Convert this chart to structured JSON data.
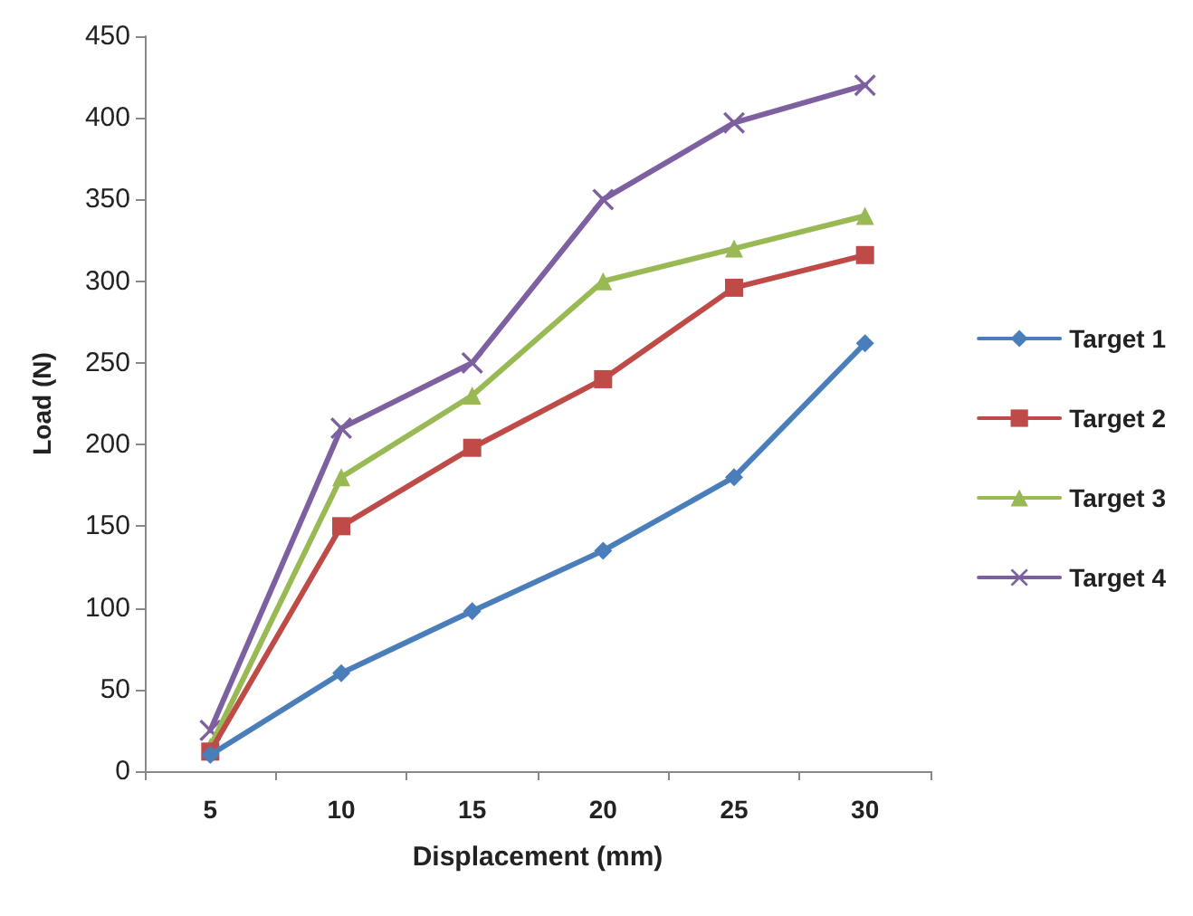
{
  "chart_data": {
    "type": "line",
    "xlabel": "Displacement (mm)",
    "ylabel": "Load (N)",
    "categories": [
      "5",
      "10",
      "15",
      "20",
      "25",
      "30"
    ],
    "ylim": [
      0,
      450
    ],
    "yticks": [
      0,
      50,
      100,
      150,
      200,
      250,
      300,
      350,
      400,
      450
    ],
    "grid": false,
    "legend": "right",
    "line_style": "solid",
    "series": [
      {
        "name": "Target 1",
        "color": "#4a7ebb",
        "marker": "diamond",
        "values": [
          10,
          60,
          98,
          135,
          180,
          262
        ]
      },
      {
        "name": "Target 2",
        "color": "#be4b48",
        "marker": "square",
        "values": [
          12,
          150,
          198,
          240,
          296,
          316
        ]
      },
      {
        "name": "Target 3",
        "color": "#98b954",
        "marker": "triangle",
        "values": [
          15,
          180,
          230,
          300,
          320,
          340
        ]
      },
      {
        "name": "Target 4",
        "color": "#7d60a0",
        "marker": "cross",
        "values": [
          25,
          210,
          250,
          350,
          397,
          420
        ]
      }
    ]
  }
}
